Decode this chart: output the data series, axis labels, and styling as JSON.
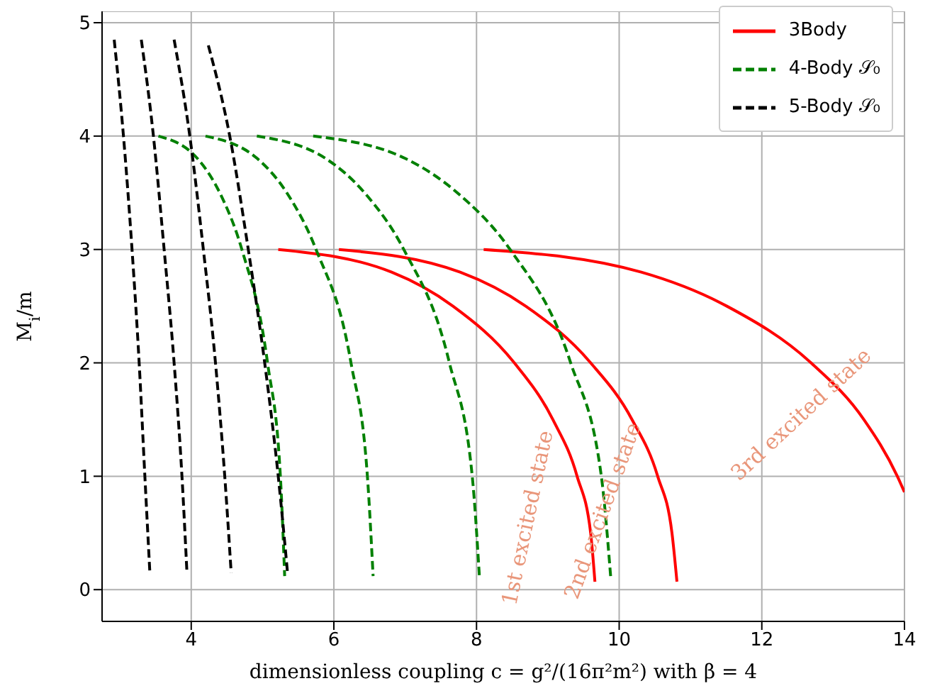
{
  "chart_data": {
    "type": "line",
    "xlabel": "dimensionless coupling c = g²/(16π²m²) with β = 4",
    "ylabel": "M$_{i}$/m",
    "xlim": [
      2.75,
      14
    ],
    "ylim": [
      -0.28,
      5.1
    ],
    "xticks": [
      4,
      6,
      8,
      10,
      12,
      14
    ],
    "yticks": [
      0,
      1,
      2,
      3,
      4,
      5
    ],
    "grid": true,
    "legend": "top right",
    "series": [
      {
        "name": "3Body",
        "color": "#ff0000",
        "line_style": "solid",
        "x": [
          5.22,
          6.81,
          7.67,
          8.53,
          9.07,
          9.41,
          9.6,
          9.66
        ],
        "values": [
          3,
          2.8,
          2.5,
          2,
          1.5,
          1,
          0.5,
          0.07
        ]
      },
      {
        "color": "#ff0000",
        "line_style": "solid",
        "x": [
          6.07,
          7.77,
          8.69,
          9.6,
          10.18,
          10.54,
          10.74,
          10.81
        ],
        "values": [
          3,
          2.8,
          2.5,
          2,
          1.5,
          1,
          0.5,
          0.07
        ]
      },
      {
        "color": "#ff0000",
        "line_style": "solid",
        "x": [
          8.1,
          10.31,
          11.51,
          12.69,
          13.43,
          13.9,
          14
        ],
        "values": [
          3,
          2.8,
          2.5,
          2,
          1.5,
          1,
          0.86
        ]
      },
      {
        "name": "4-Body 𝒮₀",
        "color": "#008000",
        "line_style": "dashed",
        "x": [
          3.54,
          4.09,
          4.4,
          4.71,
          5.07,
          5.25,
          5.31
        ],
        "values": [
          4,
          3.8,
          3.5,
          3,
          2,
          1,
          0.12
        ]
      },
      {
        "color": "#008000",
        "line_style": "dashed",
        "x": [
          4.2,
          4.93,
          5.34,
          5.75,
          6.24,
          6.47,
          6.55
        ],
        "values": [
          4,
          3.8,
          3.5,
          3,
          2,
          1,
          0.12
        ]
      },
      {
        "color": "#008000",
        "line_style": "dashed",
        "x": [
          4.92,
          5.89,
          6.43,
          6.98,
          7.62,
          7.94,
          8.04
        ],
        "values": [
          4,
          3.8,
          3.5,
          3,
          2,
          1,
          0.12
        ]
      },
      {
        "color": "#008000",
        "line_style": "dashed",
        "x": [
          5.71,
          7.01,
          7.73,
          8.47,
          9.32,
          9.75,
          9.88
        ],
        "values": [
          4,
          3.8,
          3.5,
          3,
          2,
          1,
          0.12
        ]
      },
      {
        "name": "5-Body 𝒮₀",
        "color": "#000000",
        "line_style": "dashed",
        "x": [
          2.92,
          3.05,
          3.17,
          3.27,
          3.35,
          3.42
        ],
        "values": [
          4.85,
          4,
          3,
          2,
          1,
          0.15
        ]
      },
      {
        "color": "#000000",
        "line_style": "dashed",
        "x": [
          3.3,
          3.47,
          3.62,
          3.76,
          3.87,
          3.94
        ],
        "values": [
          4.85,
          4,
          3,
          2,
          1,
          0.15
        ]
      },
      {
        "color": "#000000",
        "line_style": "dashed",
        "x": [
          3.76,
          3.98,
          4.17,
          4.34,
          4.47,
          4.56
        ],
        "values": [
          4.85,
          4,
          3,
          2,
          1,
          0.15
        ]
      },
      {
        "color": "#000000",
        "line_style": "dashed",
        "x": [
          4.24,
          4.54,
          4.8,
          5.03,
          5.22,
          5.35
        ],
        "values": [
          4.8,
          4,
          3,
          2,
          1,
          0.15
        ]
      }
    ],
    "annotations": [
      "1st excited state",
      "2nd excited state",
      "3rd excited state"
    ]
  }
}
